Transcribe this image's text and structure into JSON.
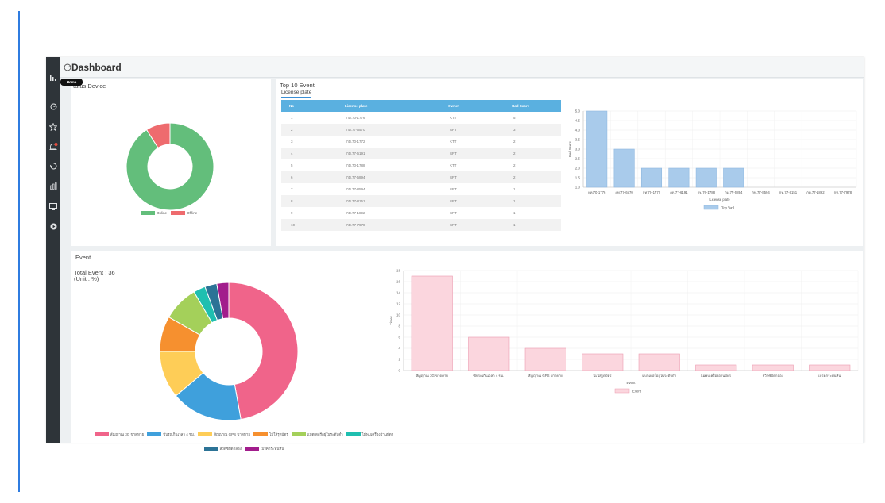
{
  "header": {
    "title": "Dashboard"
  },
  "sidebar": {
    "tooltip": "Home",
    "icons": [
      "stats-icon",
      "dashboard-icon",
      "star-icon",
      "alarm-icon",
      "history-icon",
      "report-icon",
      "monitor-icon",
      "play-icon"
    ]
  },
  "status_device": {
    "title": "tatus Device",
    "legend": [
      {
        "label": "Online",
        "color": "#63be7b"
      },
      {
        "label": "Offline",
        "color": "#ee6b6e"
      }
    ]
  },
  "top_event": {
    "title": "Top 10 Event",
    "tab": "License plate",
    "columns": [
      "No",
      "License plate",
      "Owner",
      "Bad Score"
    ],
    "rows": [
      [
        "1",
        "กท.70-1776",
        "KTT",
        "5"
      ],
      [
        "2",
        "กท.77-6570",
        "SRT",
        "3"
      ],
      [
        "3",
        "กท.70-1772",
        "KTT",
        "2"
      ],
      [
        "4",
        "กท.77-6191",
        "SRT",
        "2"
      ],
      [
        "5",
        "กท.70-1788",
        "KTT",
        "2"
      ],
      [
        "6",
        "กท.77-5894",
        "SRT",
        "2"
      ],
      [
        "7",
        "กท.77-8594",
        "SRT",
        "1"
      ],
      [
        "8",
        "กท.77-8151",
        "SRT",
        "1"
      ],
      [
        "9",
        "กท.77-1892",
        "SRT",
        "1"
      ],
      [
        "10",
        "กท.77-7978",
        "SRT",
        "1"
      ]
    ]
  },
  "event": {
    "title": "Event",
    "total_line": "Total Event : 36",
    "unit_line": "(Unit : %)"
  },
  "chart_data": [
    {
      "type": "pie",
      "categories": [
        "Online",
        "Offline"
      ],
      "values": [
        91,
        9
      ],
      "colors": [
        "#63be7b",
        "#ee6b6e"
      ]
    },
    {
      "type": "bar",
      "categories": [
        "กท.70-1776",
        "กท.77-6570",
        "กท.70-1772",
        "กท.77-6191",
        "กท.70-1788",
        "กท.77-5894",
        "กท.77-8594",
        "กท.77-8151",
        "กท.77-1892",
        "กท.77-7978"
      ],
      "series": [
        {
          "name": "Top Bad",
          "values": [
            5,
            3,
            2,
            2,
            2,
            2,
            1,
            1,
            1,
            1
          ],
          "color": "#a9cbeb"
        }
      ],
      "ylim": [
        1,
        5
      ],
      "yticks": [
        "1.0",
        "1.5",
        "2.0",
        "2.5",
        "3.0",
        "3.5",
        "4.0",
        "4.5",
        "5.0"
      ],
      "xlabel": "License plate",
      "ylabel": "Bad Score"
    },
    {
      "type": "pie",
      "categories": [
        "สัญญาณ 3G ขาดหาย",
        "ขับรถเกินเวลา 4 ชม.",
        "สัญญาณ GPS ขาดหาย",
        "ไม่ใส่รูดบัตร",
        "แบตเตอรี่อยู่ในระดับต่ำ",
        "ไม่พบเครื่องอ่านบัตร",
        "สวิตซ์ปิดกล่อง",
        "เบรคกระทันหัน"
      ],
      "values": [
        47.2,
        16.7,
        11.1,
        8.3,
        8.3,
        2.8,
        2.8,
        2.8
      ],
      "colors": [
        "#f0648a",
        "#3fa0dc",
        "#fecd57",
        "#f6902f",
        "#a4d05a",
        "#1fbfb0",
        "#2c7396",
        "#a21d8c"
      ]
    },
    {
      "type": "bar",
      "categories": [
        "สัญญาณ 3G ขาดหาย",
        "ขับรถเกินเวลา 4 ชม.",
        "สัญญาณ GPS ขาดหาย",
        "ไม่ใส่รูดบัตร",
        "แบตเตอรี่อยู่ในระดับต่ำ",
        "ไม่พบเครื่องอ่านบัตร",
        "สวิตซ์ปิดกล่อง",
        "เบรคกระทันหัน"
      ],
      "series": [
        {
          "name": "Event",
          "values": [
            17,
            6,
            4,
            3,
            3,
            1,
            1,
            1
          ],
          "color": "#fbd6de"
        }
      ],
      "ylim": [
        0,
        18
      ],
      "yticks": [
        "0",
        "2",
        "4",
        "6",
        "8",
        "10",
        "12",
        "14",
        "16",
        "18"
      ],
      "xlabel": "Event",
      "ylabel": "Times"
    }
  ]
}
